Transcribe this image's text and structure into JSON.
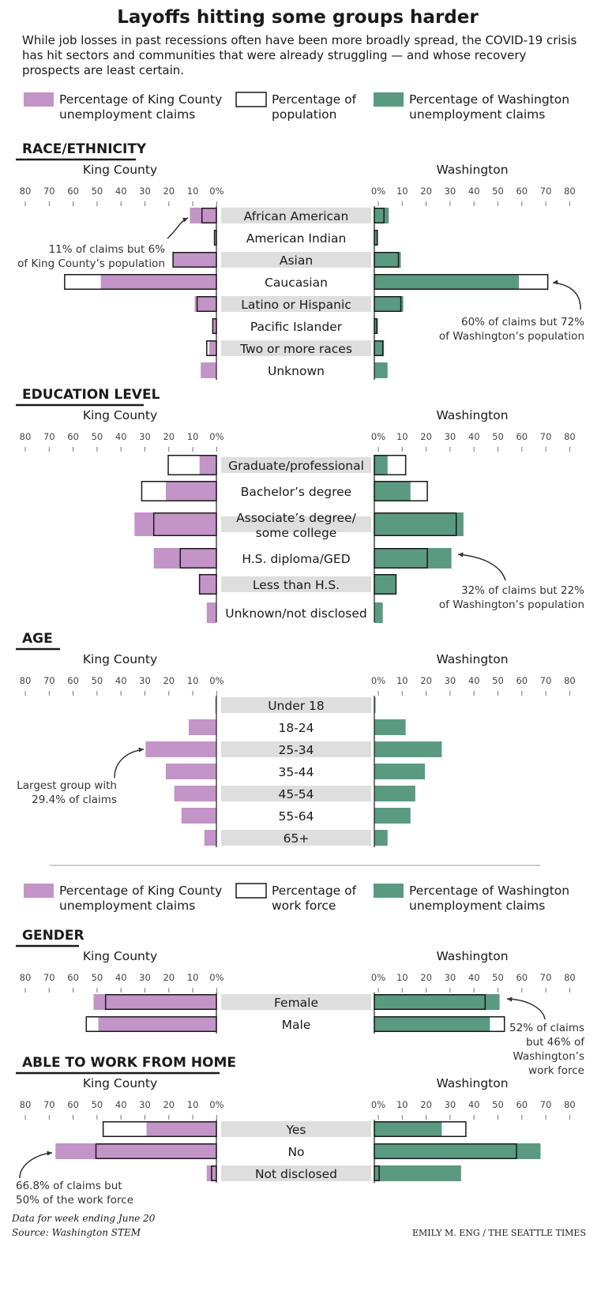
{
  "title": "Layoffs hitting some groups harder",
  "subtitle": [
    "While job losses in past recessions often have been more broadly spread, the COVID-19 crisis",
    "has hit sectors and communities that were already struggling — and whose recovery",
    "prospects are least certain."
  ],
  "colors": {
    "king": "#c394c7",
    "wa": "#5a9a80",
    "population": "#ffffff",
    "label_band": "#dedede",
    "outline": "#1a1a1a"
  },
  "legend_population": [
    [
      "Percentage of King County",
      "unemployment claims"
    ],
    [
      "Percentage of",
      "population"
    ],
    [
      "Percentage of Washington",
      "unemployment claims"
    ]
  ],
  "legend_workforce": [
    [
      "Percentage of King County",
      "unemployment claims"
    ],
    [
      "Percentage of",
      "work force"
    ],
    [
      "Percentage of Washington",
      "unemployment claims"
    ]
  ],
  "left_header": "King County",
  "right_header": "Washington",
  "left_ticks": [
    "80",
    "70",
    "60",
    "50",
    "40",
    "30",
    "20",
    "10",
    "0%"
  ],
  "right_ticks": [
    "0%",
    "10",
    "20",
    "30",
    "40",
    "50",
    "60",
    "70",
    "80"
  ],
  "chart_data": [
    {
      "type": "bar",
      "section": "RACE/ETHNICITY",
      "categories": [
        "African American",
        "American Indian",
        "Asian",
        "Caucasian",
        "Latino or Hispanic",
        "Pacific Islander",
        "Two or more races",
        "Unknown"
      ],
      "band": [
        true,
        false,
        true,
        false,
        true,
        false,
        true,
        false
      ],
      "king_claims": [
        11,
        1,
        18,
        48,
        9,
        1.5,
        3,
        6.5
      ],
      "king_population": [
        6,
        0.8,
        18,
        63,
        8,
        1.5,
        4,
        null
      ],
      "wa_claims": [
        6,
        1.5,
        11,
        60,
        12,
        1.5,
        4,
        5.5
      ],
      "wa_population": [
        4,
        1.2,
        10,
        72,
        11,
        1,
        3.5,
        null
      ],
      "xlim": [
        0,
        80
      ],
      "annotations": [
        {
          "side": "left",
          "lines": [
            "11% of claims but 6%",
            "of King County’s population"
          ]
        },
        {
          "side": "right",
          "lines": [
            "60% of claims but 72%",
            "of Washington’s population"
          ]
        }
      ]
    },
    {
      "type": "bar",
      "section": "EDUCATION LEVEL",
      "categories": [
        [
          "Graduate/professional"
        ],
        [
          "Bachelor’s degree"
        ],
        [
          "Associate’s degree/",
          "some college"
        ],
        [
          "H.S. diploma/GED"
        ],
        [
          "Less than H.S."
        ],
        [
          "Unknown/not disclosed"
        ]
      ],
      "band": [
        true,
        false,
        true,
        false,
        true,
        false
      ],
      "king_claims": [
        7,
        21,
        34,
        26,
        7,
        4
      ],
      "king_population": [
        20,
        31,
        26,
        15,
        7,
        null
      ],
      "wa_claims": [
        5.5,
        15,
        37,
        32,
        9,
        3.5
      ],
      "wa_population": [
        13,
        22,
        34,
        22,
        9,
        null
      ],
      "xlim": [
        0,
        80
      ],
      "annotations": [
        {
          "side": "right",
          "lines": [
            "32% of claims but 22%",
            "of Washington’s population"
          ]
        }
      ]
    },
    {
      "type": "bar",
      "section": "AGE",
      "categories": [
        "Under 18",
        "18-24",
        "25-34",
        "35-44",
        "45-54",
        "55-64",
        "65+"
      ],
      "band": [
        true,
        false,
        true,
        false,
        true,
        false,
        true
      ],
      "king_claims": [
        0.5,
        11.5,
        29.4,
        21,
        17.5,
        14.5,
        5
      ],
      "king_population": [],
      "wa_claims": [
        0.5,
        13,
        28,
        21,
        17,
        15,
        5.5
      ],
      "wa_population": [],
      "xlim": [
        0,
        80
      ],
      "annotations": [
        {
          "side": "left",
          "lines": [
            "Largest group with",
            "29.4% of claims"
          ]
        }
      ]
    },
    {
      "type": "bar",
      "section": "GENDER",
      "categories": [
        "Female",
        "Male"
      ],
      "band": [
        true,
        false
      ],
      "king_claims": [
        51,
        49
      ],
      "king_population": [
        46,
        54
      ],
      "wa_claims": [
        52,
        48
      ],
      "wa_population": [
        46,
        54
      ],
      "xlim": [
        0,
        80
      ],
      "annotations": [
        {
          "side": "right",
          "lines": [
            "52% of claims",
            "but 46% of",
            "Washington’s",
            "work force"
          ]
        }
      ]
    },
    {
      "type": "bar",
      "section": "ABLE TO WORK FROM HOME",
      "categories": [
        "Yes",
        "No",
        "Not disclosed"
      ],
      "band": [
        true,
        false,
        true
      ],
      "king_claims": [
        29,
        66.8,
        4
      ],
      "king_population": [
        47,
        50,
        2
      ],
      "wa_claims": [
        28,
        69,
        36
      ],
      "wa_population": [
        38,
        59,
        2
      ],
      "xlim": [
        0,
        80
      ],
      "annotations": [
        {
          "side": "left",
          "lines": [
            "66.8% of claims but",
            "50% of the work force"
          ]
        }
      ]
    }
  ],
  "footer": {
    "note": "Data for week ending June 20",
    "source": "Source: Washington STEM",
    "credit": "EMILY M. ENG / THE SEATTLE TIMES"
  }
}
